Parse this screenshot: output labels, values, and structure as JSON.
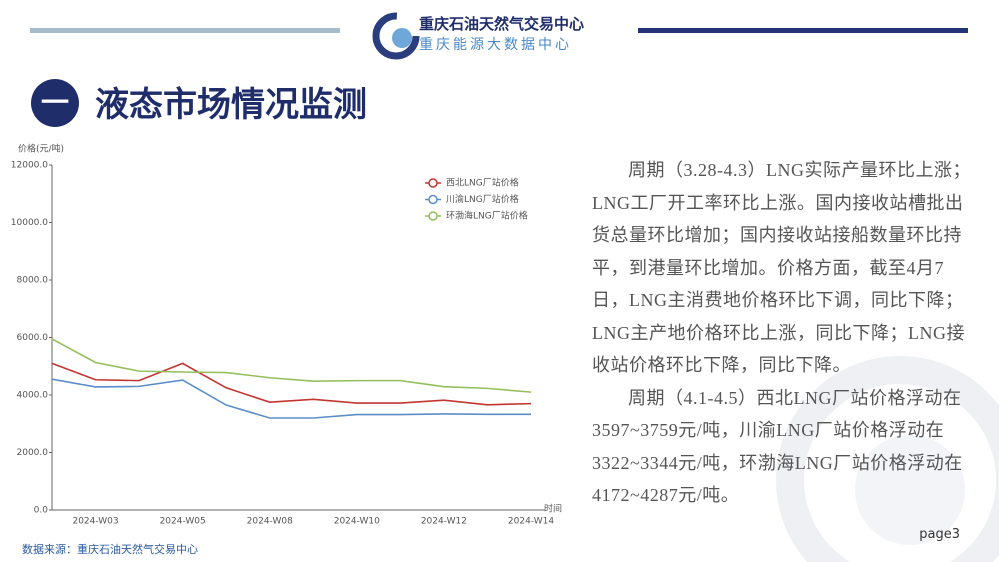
{
  "header": {
    "org1": "重庆石油天然气交易中心",
    "org2": "重庆能源大数据中心"
  },
  "section": {
    "number": "一",
    "title": "液态市场情况监测"
  },
  "chart_data": {
    "type": "line",
    "y_label": "价格(元/吨)",
    "x_label": "时间",
    "categories": [
      null,
      "2024-W03",
      null,
      "2024-W05",
      null,
      "2024-W08",
      null,
      "2024-W10",
      null,
      "2024-W12",
      null,
      "2024-W14"
    ],
    "series": [
      {
        "name": "西北LNG厂站价格",
        "color": "#c23531",
        "values": [
          5100,
          4530,
          4500,
          5100,
          4250,
          3750,
          3850,
          3720,
          3720,
          3820,
          3660,
          3700
        ]
      },
      {
        "name": "川渝LNG厂站价格",
        "color": "#5b8ec9",
        "values": [
          4550,
          4280,
          4300,
          4520,
          3650,
          3200,
          3200,
          3320,
          3320,
          3340,
          3330,
          3330
        ]
      },
      {
        "name": "环渤海LNG厂站价格",
        "color": "#93c05a",
        "values": [
          5950,
          5130,
          4830,
          4800,
          4780,
          4600,
          4480,
          4500,
          4500,
          4290,
          4230,
          4100
        ]
      }
    ],
    "ylim": [
      0,
      12000
    ],
    "yticks": [
      {
        "value": 0,
        "label": "0.0"
      },
      {
        "value": 2000,
        "label": "2000.0"
      },
      {
        "value": 4000,
        "label": "4000.0"
      },
      {
        "value": 6000,
        "label": "6000.0"
      },
      {
        "value": 8000,
        "label": "8000.0"
      },
      {
        "value": 10000,
        "label": "10000.0"
      },
      {
        "value": 12000,
        "label": "12000.0"
      }
    ],
    "legend": "top-right"
  },
  "text": {
    "paragraphs": [
      "周期（3.28-4.3）LNG实际产量环比上涨；LNG工厂开工率环比上涨。国内接收站槽批出货总量环比增加；国内接收站接船数量环比持平，到港量环比增加。价格方面，截至4月7日，LNG主消费地价格环比下调，同比下降；LNG主产地价格环比上涨，同比下降；LNG接收站价格环比下降，同比下降。",
      "周期（4.1-4.5）西北LNG厂站价格浮动在3597~3759元/吨，川渝LNG厂站价格浮动在3322~3344元/吨，环渤海LNG厂站价格浮动在4172~4287元/吨。"
    ]
  },
  "source": "数据来源：重庆石油天然气交易中心",
  "page": "page3"
}
